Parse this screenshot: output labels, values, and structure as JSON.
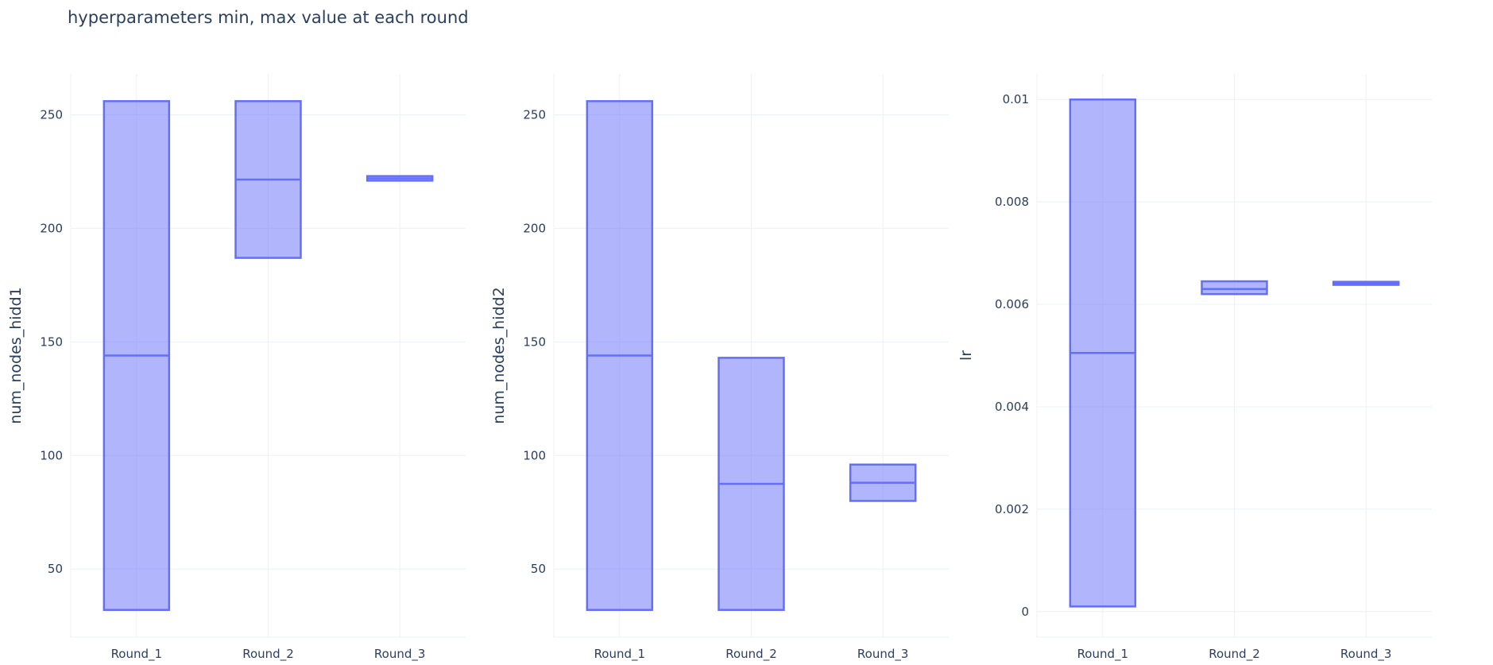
{
  "title": "hyperparameters min, max value at each round",
  "colors": {
    "box_fill": "#636efa",
    "box_line": "#636efa",
    "grid": "#ebf0f8",
    "text": "#2a3f5f"
  },
  "chart_data": [
    {
      "type": "box",
      "ylabel": "num_nodes_hidd1",
      "categories": [
        "Round_1",
        "Round_2",
        "Round_3"
      ],
      "ylim": [
        20,
        268
      ],
      "yticks": [
        50,
        100,
        150,
        200,
        250
      ],
      "yticklabels": [
        "50",
        "100",
        "150",
        "200",
        "250"
      ],
      "boxes": [
        {
          "category": "Round_1",
          "q1": 32,
          "median": 144,
          "q3": 256
        },
        {
          "category": "Round_2",
          "q1": 187,
          "median": 221.5,
          "q3": 256
        },
        {
          "category": "Round_3",
          "q1": 221,
          "median": 222,
          "q3": 223
        }
      ]
    },
    {
      "type": "box",
      "ylabel": "num_nodes_hidd2",
      "categories": [
        "Round_1",
        "Round_2",
        "Round_3"
      ],
      "ylim": [
        20,
        268
      ],
      "yticks": [
        50,
        100,
        150,
        200,
        250
      ],
      "yticklabels": [
        "50",
        "100",
        "150",
        "200",
        "250"
      ],
      "boxes": [
        {
          "category": "Round_1",
          "q1": 32,
          "median": 144,
          "q3": 256
        },
        {
          "category": "Round_2",
          "q1": 32,
          "median": 87.5,
          "q3": 143
        },
        {
          "category": "Round_3",
          "q1": 80,
          "median": 88,
          "q3": 96
        }
      ]
    },
    {
      "type": "box",
      "ylabel": "lr",
      "categories": [
        "Round_1",
        "Round_2",
        "Round_3"
      ],
      "ylim": [
        -0.0005,
        0.0105
      ],
      "yticks": [
        0,
        0.002,
        0.004,
        0.006,
        0.008,
        0.01
      ],
      "yticklabels": [
        "0",
        "0.002",
        "0.004",
        "0.006",
        "0.008",
        "0.01"
      ],
      "boxes": [
        {
          "category": "Round_1",
          "q1": 0.0001,
          "median": 0.00505,
          "q3": 0.01
        },
        {
          "category": "Round_2",
          "q1": 0.0062,
          "median": 0.0063,
          "q3": 0.00645
        },
        {
          "category": "Round_3",
          "q1": 0.00638,
          "median": 0.00641,
          "q3": 0.00644
        }
      ]
    }
  ]
}
